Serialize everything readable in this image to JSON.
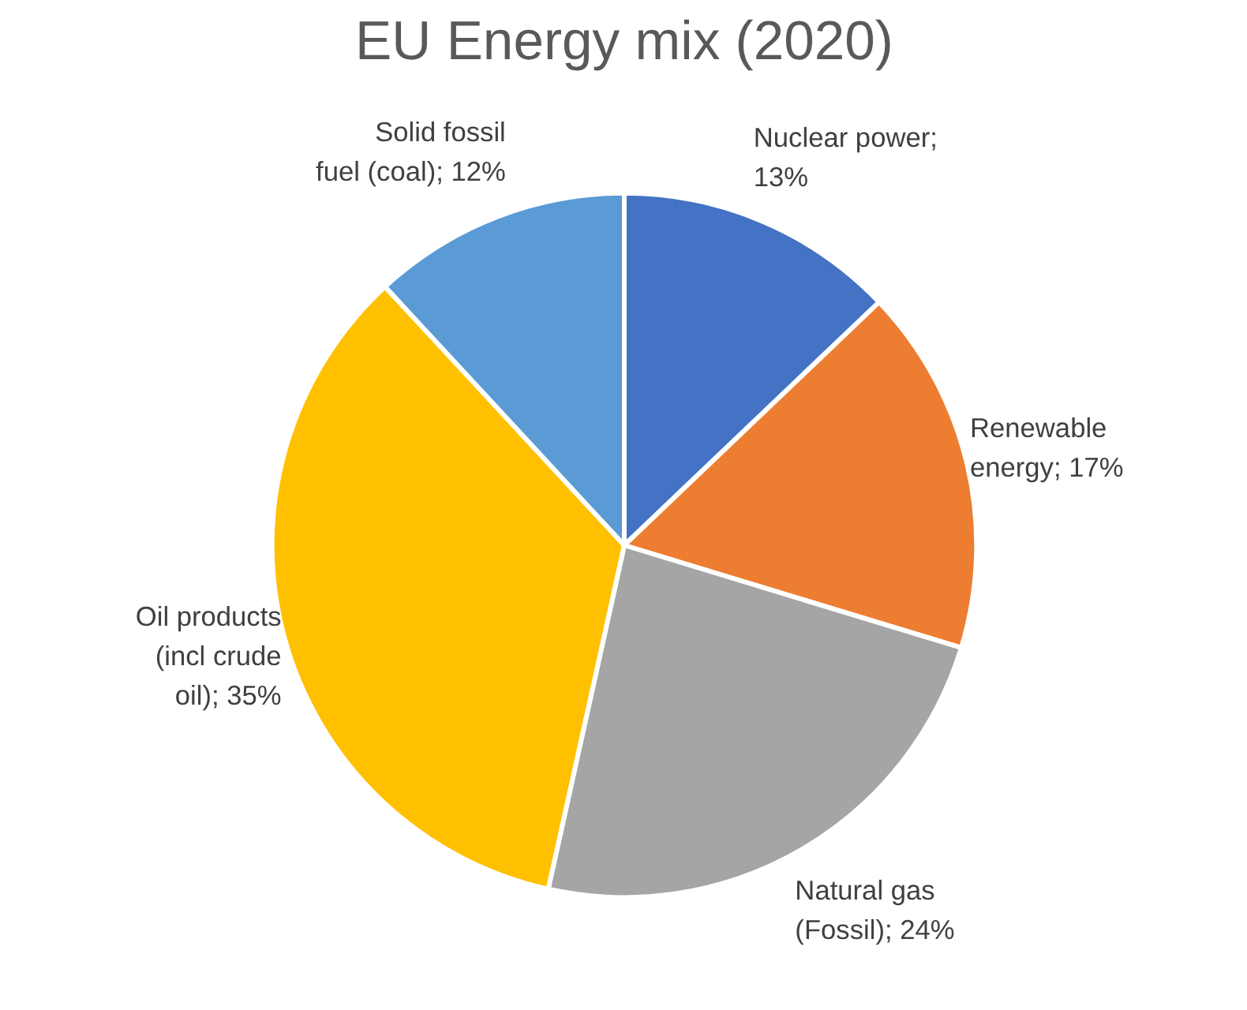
{
  "chart_data": {
    "type": "pie",
    "title": "EU Energy mix (2020)",
    "categories": [
      "Nuclear power",
      "Renewable energy",
      "Natural gas (Fossil)",
      "Oil products (incl crude oil)",
      "Solid fossil fuel (coal)"
    ],
    "values": [
      13,
      17,
      24,
      35,
      12
    ],
    "value_labels": [
      "; 13%",
      "; 17%",
      "; 24%",
      "; 35%",
      "; 12%"
    ],
    "colors": [
      "#4472c4",
      "#ed7d31",
      "#a5a5a5",
      "#ffc000",
      "#5b9bd5"
    ]
  }
}
